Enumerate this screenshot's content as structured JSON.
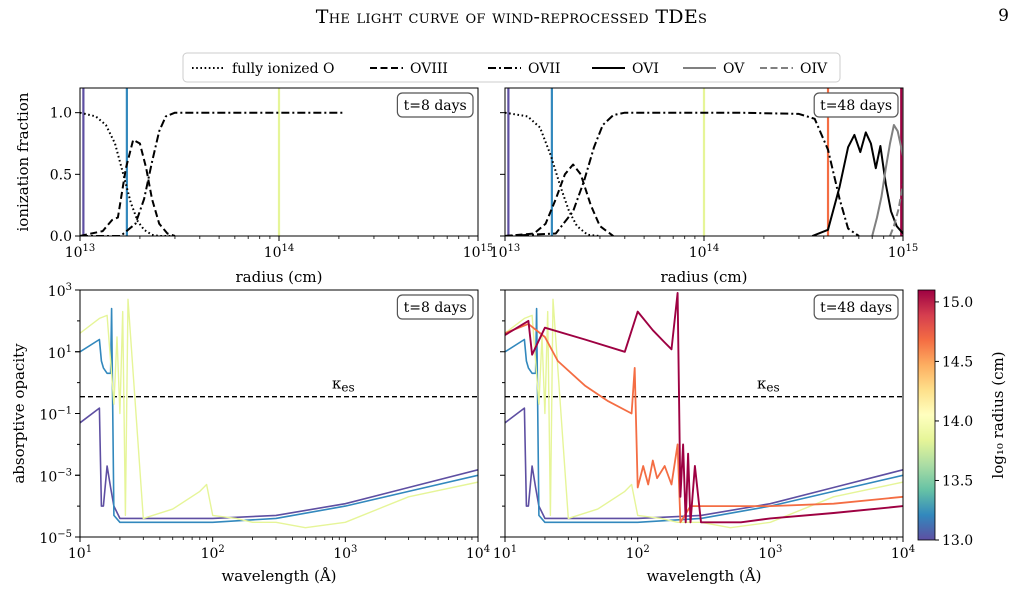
{
  "header": {
    "title": "The light curve of wind-reprocessed TDEs",
    "page_number": "9"
  },
  "chart_data": [
    {
      "type": "line",
      "panel": "top-left",
      "xlabel": "radius (cm)",
      "ylabel": "ionization fraction",
      "xscale": "log",
      "xlim": [
        10000000000000.0,
        1000000000000000.0
      ],
      "ylim": [
        0,
        1.2
      ],
      "xticks": [
        {
          "v": 10000000000000.0,
          "b": "10",
          "e": "13"
        },
        {
          "v": 100000000000000.0,
          "b": "10",
          "e": "14"
        },
        {
          "v": 1000000000000000.0,
          "b": "10",
          "e": "15"
        }
      ],
      "yticks": [
        {
          "v": 0,
          "t": "0.0"
        },
        {
          "v": 0.5,
          "t": "0.5"
        },
        {
          "v": 1.0,
          "t": "1.0"
        }
      ],
      "annotation": "t=8 days",
      "vlines": [
        {
          "x": 10400000000000.0,
          "color": "#5e4fa2"
        },
        {
          "x": 17200000000000.0,
          "color": "#3288bd"
        },
        {
          "x": 100000000000000.0,
          "color": "#e6f598"
        }
      ],
      "series": [
        {
          "name": "fully ionized O",
          "style": "dotted",
          "color": "#000000",
          "x": [
            10000000000000.0,
            12000000000000.0,
            13500000000000.0,
            15000000000000.0,
            16500000000000.0,
            18000000000000.0,
            19500000000000.0,
            21000000000000.0,
            23000000000000.0,
            25000000000000.0,
            30000000000000.0
          ],
          "y": [
            1.0,
            0.97,
            0.9,
            0.75,
            0.5,
            0.27,
            0.12,
            0.05,
            0.01,
            0.0,
            0.0
          ]
        },
        {
          "name": "OVIII",
          "style": "dashed",
          "color": "#000000",
          "x": [
            10000000000000.0,
            13000000000000.0,
            14500000000000.0,
            15500000000000.0,
            17000000000000.0,
            18500000000000.0,
            20000000000000.0,
            21500000000000.0,
            23000000000000.0,
            25000000000000.0,
            27500000000000.0,
            30000000000000.0
          ],
          "y": [
            0.0,
            0.04,
            0.13,
            0.15,
            0.55,
            0.78,
            0.75,
            0.55,
            0.3,
            0.1,
            0.02,
            0.0
          ]
        },
        {
          "name": "OVII",
          "style": "dashdot",
          "color": "#000000",
          "x": [
            10000000000000.0,
            16000000000000.0,
            19000000000000.0,
            21000000000000.0,
            23000000000000.0,
            25000000000000.0,
            27000000000000.0,
            30000000000000.0,
            50000000000000.0,
            210000000000000.0
          ],
          "y": [
            0.0,
            0.0,
            0.1,
            0.3,
            0.6,
            0.85,
            0.97,
            1.0,
            1.0,
            1.0
          ]
        }
      ]
    },
    {
      "type": "line",
      "panel": "top-right",
      "xlabel": "radius (cm)",
      "xscale": "log",
      "xlim": [
        10000000000000.0,
        1000000000000000.0
      ],
      "ylim": [
        0,
        1.2
      ],
      "xticks": [
        {
          "v": 10000000000000.0,
          "b": "10",
          "e": "13"
        },
        {
          "v": 100000000000000.0,
          "b": "10",
          "e": "14"
        },
        {
          "v": 1000000000000000.0,
          "b": "10",
          "e": "15"
        }
      ],
      "annotation": "t=48 days",
      "vlines": [
        {
          "x": 10400000000000.0,
          "color": "#5e4fa2"
        },
        {
          "x": 17200000000000.0,
          "color": "#3288bd"
        },
        {
          "x": 100000000000000.0,
          "color": "#e6f598"
        },
        {
          "x": 420000000000000.0,
          "color": "#f46d43"
        },
        {
          "x": 980000000000000.0,
          "color": "#9e0142"
        }
      ],
      "series": [
        {
          "name": "fully ionized O",
          "style": "dotted",
          "color": "#000000",
          "x": [
            10000000000000.0,
            13000000000000.0,
            15000000000000.0,
            17000000000000.0,
            19000000000000.0,
            21000000000000.0,
            23000000000000.0,
            26000000000000.0,
            30000000000000.0
          ],
          "y": [
            1.0,
            0.97,
            0.88,
            0.65,
            0.4,
            0.2,
            0.08,
            0.01,
            0.0
          ]
        },
        {
          "name": "OVIII",
          "style": "dashed",
          "color": "#000000",
          "x": [
            10000000000000.0,
            14000000000000.0,
            16000000000000.0,
            18000000000000.0,
            20000000000000.0,
            22000000000000.0,
            24000000000000.0,
            27000000000000.0,
            30000000000000.0,
            35000000000000.0
          ],
          "y": [
            0.0,
            0.02,
            0.1,
            0.3,
            0.5,
            0.58,
            0.5,
            0.25,
            0.08,
            0.0
          ]
        },
        {
          "name": "OVII",
          "style": "dashdot",
          "color": "#000000",
          "x": [
            10000000000000.0,
            18000000000000.0,
            22000000000000.0,
            25000000000000.0,
            28000000000000.0,
            31000000000000.0,
            35000000000000.0,
            40000000000000.0,
            150000000000000.0,
            300000000000000.0,
            360000000000000.0,
            420000000000000.0,
            480000000000000.0,
            530000000000000.0,
            600000000000000.0
          ],
          "y": [
            0.0,
            0.02,
            0.2,
            0.45,
            0.72,
            0.9,
            0.98,
            1.0,
            1.0,
            0.99,
            0.95,
            0.7,
            0.3,
            0.06,
            0.0
          ]
        },
        {
          "name": "OVI",
          "style": "solid",
          "color": "#000000",
          "x": [
            350000000000000.0,
            420000000000000.0,
            480000000000000.0,
            530000000000000.0,
            570000000000000.0,
            610000000000000.0,
            650000000000000.0,
            690000000000000.0,
            730000000000000.0,
            770000000000000.0,
            820000000000000.0,
            870000000000000.0,
            930000000000000.0,
            1000000000000000.0
          ],
          "y": [
            0.0,
            0.05,
            0.4,
            0.72,
            0.82,
            0.68,
            0.84,
            0.75,
            0.55,
            0.73,
            0.42,
            0.2,
            0.08,
            0.02
          ]
        },
        {
          "name": "OV",
          "style": "solid",
          "color": "#808080",
          "x": [
            700000000000000.0,
            740000000000000.0,
            780000000000000.0,
            820000000000000.0,
            860000000000000.0,
            900000000000000.0,
            940000000000000.0,
            1000000000000000.0
          ],
          "y": [
            0.0,
            0.15,
            0.32,
            0.55,
            0.75,
            0.9,
            0.85,
            0.65
          ]
        },
        {
          "name": "OIV",
          "style": "dashed",
          "color": "#808080",
          "x": [
            860000000000000.0,
            900000000000000.0,
            950000000000000.0,
            1000000000000000.0
          ],
          "y": [
            0.0,
            0.08,
            0.22,
            0.42
          ]
        }
      ]
    },
    {
      "type": "line",
      "panel": "bottom-left",
      "xlabel": "wavelength (Å)",
      "ylabel": "absorptive opacity",
      "xscale": "log",
      "yscale": "log",
      "xlim": [
        10,
        10000
      ],
      "ylim": [
        1e-05,
        1000
      ],
      "xticks": [
        {
          "v": 10,
          "b": "10",
          "e": "1"
        },
        {
          "v": 100,
          "b": "10",
          "e": "2"
        },
        {
          "v": 1000,
          "b": "10",
          "e": "3"
        },
        {
          "v": 10000,
          "b": "10",
          "e": "4"
        }
      ],
      "yticks": [
        {
          "v": 1e-05,
          "b": "10",
          "e": "−5"
        },
        {
          "v": 0.001,
          "b": "10",
          "e": "−3"
        },
        {
          "v": 0.1,
          "b": "10",
          "e": "−1"
        },
        {
          "v": 10,
          "b": "10",
          "e": "1"
        },
        {
          "v": 1000,
          "b": "10",
          "e": "3"
        }
      ],
      "annotation": "t=8 days",
      "hline": {
        "y": 0.35,
        "label": "κ",
        "label_sub": "es"
      },
      "series": [
        {
          "color": "#5e4fa2",
          "width": 1.6,
          "x": [
            10,
            14,
            14.5,
            15,
            16,
            17,
            18,
            20,
            50,
            100,
            300,
            1000,
            3000,
            10000
          ],
          "y": [
            0.05,
            0.15,
            0.0001,
            0.0001,
            0.002,
            0.0004,
            0.0001,
            4e-05,
            4e-05,
            4e-05,
            5e-05,
            0.00012,
            0.0004,
            0.0015
          ]
        },
        {
          "color": "#3288bd",
          "width": 1.6,
          "x": [
            10,
            14,
            14.5,
            15,
            16,
            17,
            17.3,
            18,
            20,
            50,
            100,
            300,
            1000,
            3000,
            10000
          ],
          "y": [
            10,
            25,
            5,
            3,
            2,
            2,
            250,
            5e-05,
            3e-05,
            3e-05,
            3e-05,
            4e-05,
            0.0001,
            0.0003,
            0.001
          ]
        },
        {
          "color": "#e6f598",
          "width": 1.4,
          "x": [
            10,
            14,
            16,
            18,
            19,
            20,
            21,
            22,
            23,
            30,
            50,
            80,
            90,
            100,
            150,
            200,
            300,
            500,
            1000,
            3000,
            10000
          ],
          "y": [
            40,
            120,
            150,
            0.2,
            30,
            0.1,
            200,
            5e-05,
            500,
            4e-05,
            8e-05,
            0.0003,
            0.0005,
            5e-05,
            4e-05,
            3e-05,
            3e-05,
            2e-05,
            3e-05,
            0.0002,
            0.0006
          ]
        }
      ]
    },
    {
      "type": "line",
      "panel": "bottom-right",
      "xlabel": "wavelength (Å)",
      "xscale": "log",
      "yscale": "log",
      "xlim": [
        10,
        10000
      ],
      "ylim": [
        1e-05,
        1000
      ],
      "xticks": [
        {
          "v": 10,
          "b": "10",
          "e": "1"
        },
        {
          "v": 100,
          "b": "10",
          "e": "2"
        },
        {
          "v": 1000,
          "b": "10",
          "e": "3"
        },
        {
          "v": 10000,
          "b": "10",
          "e": "4"
        }
      ],
      "annotation": "t=48 days",
      "hline": {
        "y": 0.35,
        "label": "κ",
        "label_sub": "es"
      },
      "colorbar": {
        "label": "log₁₀ radius (cm)",
        "range": [
          13.0,
          15.1
        ],
        "ticks": [
          "13.0",
          "13.5",
          "14.0",
          "14.5",
          "15.0"
        ],
        "colors": [
          "#5e4fa2",
          "#3288bd",
          "#66c2a5",
          "#abdda4",
          "#e6f598",
          "#ffffbf",
          "#fee08b",
          "#fdae61",
          "#f46d43",
          "#d53e4f",
          "#9e0142"
        ]
      },
      "series": [
        {
          "color": "#5e4fa2",
          "width": 1.6,
          "x": [
            10,
            14,
            14.5,
            15,
            16,
            17,
            18,
            20,
            50,
            100,
            300,
            1000,
            3000,
            10000
          ],
          "y": [
            0.05,
            0.15,
            0.0001,
            0.0001,
            0.002,
            0.0004,
            0.0001,
            4e-05,
            4e-05,
            4e-05,
            5e-05,
            0.00012,
            0.0004,
            0.0015
          ]
        },
        {
          "color": "#3288bd",
          "width": 1.6,
          "x": [
            10,
            14,
            14.5,
            15,
            16,
            17,
            17.3,
            18,
            20,
            50,
            100,
            300,
            1000,
            3000,
            10000
          ],
          "y": [
            10,
            25,
            5,
            3,
            2,
            2,
            250,
            5e-05,
            3e-05,
            3e-05,
            3e-05,
            4e-05,
            0.0001,
            0.0003,
            0.001
          ]
        },
        {
          "color": "#e6f598",
          "width": 1.4,
          "x": [
            10,
            14,
            16,
            18,
            19,
            20,
            21,
            22,
            23,
            30,
            50,
            80,
            90,
            100,
            150,
            200,
            300,
            500,
            1000,
            3000,
            10000
          ],
          "y": [
            40,
            120,
            150,
            0.2,
            30,
            0.1,
            200,
            5e-05,
            500,
            4e-05,
            8e-05,
            0.0003,
            0.0005,
            5e-05,
            4e-05,
            3e-05,
            3e-05,
            2e-05,
            3e-05,
            0.0002,
            0.0006
          ]
        },
        {
          "color": "#f46d43",
          "width": 1.8,
          "x": [
            10,
            15,
            20,
            25,
            40,
            60,
            90,
            95,
            100,
            110,
            120,
            130,
            140,
            160,
            180,
            200,
            210,
            250,
            300,
            500,
            1000,
            3000,
            10000
          ],
          "y": [
            40,
            80,
            30,
            5,
            0.8,
            0.25,
            0.1,
            3,
            0.0004,
            0.002,
            0.0005,
            0.003,
            0.0008,
            0.002,
            0.0005,
            0.01,
            3e-05,
            0.0001,
            0.0001,
            0.0001,
            0.0001,
            0.00012,
            0.0002
          ]
        },
        {
          "color": "#9e0142",
          "width": 1.9,
          "x": [
            10,
            15,
            16,
            20,
            40,
            80,
            100,
            130,
            160,
            180,
            200,
            210,
            220,
            230,
            240,
            250,
            270,
            300,
            400,
            600,
            1000,
            3000,
            10000
          ],
          "y": [
            35,
            100,
            8,
            60,
            25,
            10,
            200,
            50,
            20,
            12,
            800,
            0.0002,
            0.01,
            3e-05,
            0.005,
            3e-05,
            0.002,
            3e-05,
            3e-05,
            3e-05,
            4e-05,
            6e-05,
            0.0001
          ]
        }
      ]
    }
  ],
  "legend": [
    {
      "label": "fully ionized O",
      "style": "dotted",
      "color": "#000000"
    },
    {
      "label": "OVIII",
      "style": "dashed",
      "color": "#000000"
    },
    {
      "label": "OVII",
      "style": "dashdot",
      "color": "#000000"
    },
    {
      "label": "OVI",
      "style": "solid",
      "color": "#000000"
    },
    {
      "label": "OV",
      "style": "solid",
      "color": "#808080"
    },
    {
      "label": "OIV",
      "style": "dashed",
      "color": "#808080"
    }
  ]
}
